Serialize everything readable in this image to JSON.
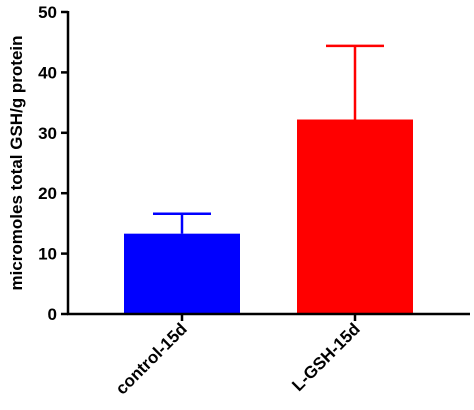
{
  "chart_data": {
    "type": "bar",
    "title": "",
    "xlabel": "",
    "ylabel": "micromoles total GSH/g protein",
    "ylim": [
      0,
      50
    ],
    "yticks": [
      "0",
      "10",
      "20",
      "30",
      "40",
      "50"
    ],
    "categories": [
      "control-15d",
      "L-GSH-15d"
    ],
    "values": [
      13.3,
      32.2
    ],
    "errors": [
      3.3,
      12.2
    ],
    "colors": [
      "#0000ff",
      "#ff0000"
    ],
    "grid": false,
    "legend": "none"
  }
}
